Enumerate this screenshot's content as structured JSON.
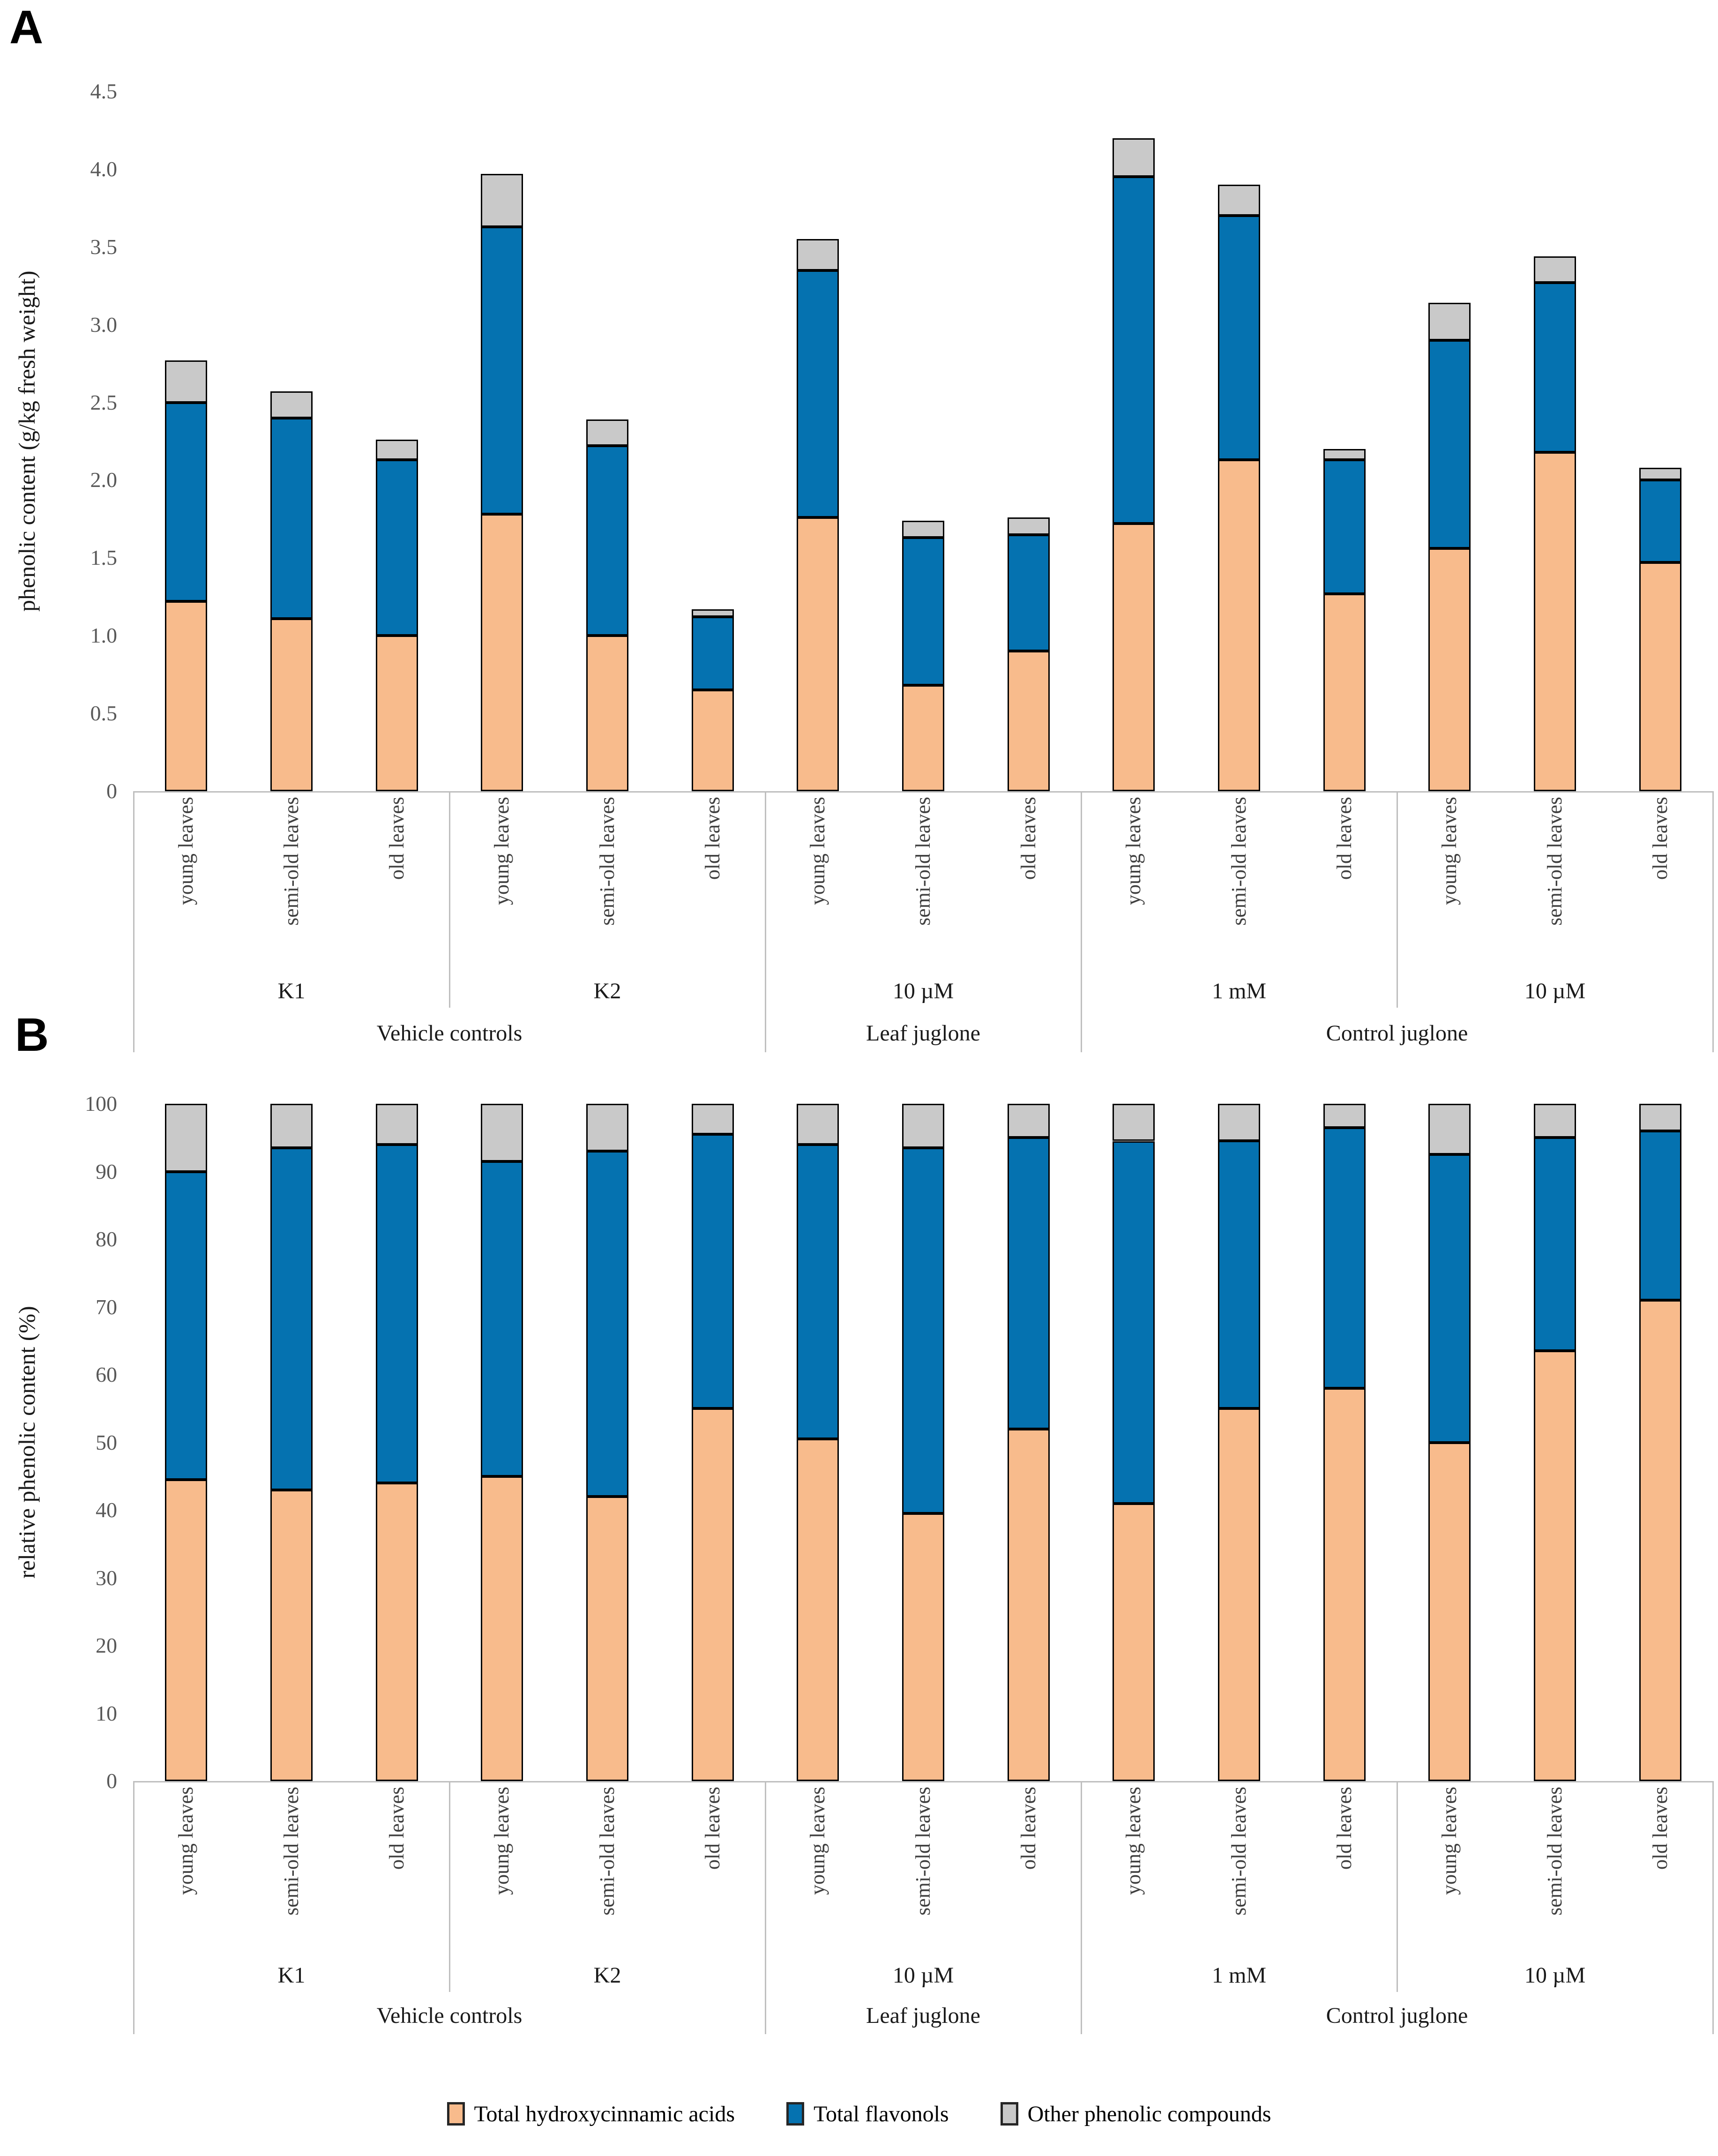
{
  "chart_data": [
    {
      "type": "bar",
      "stacked": true,
      "panel_label": "A",
      "ylabel": "phenolic content (g/kg fresh weight)",
      "ylim": [
        0,
        4.5
      ],
      "yticks": [
        "0",
        "0.5",
        "1.0",
        "1.5",
        "2.0",
        "2.5",
        "3.0",
        "3.5",
        "4.0",
        "4.5"
      ],
      "grid": false,
      "categories": [
        "young leaves",
        "semi-old leaves",
        "old leaves",
        "young leaves",
        "semi-old leaves",
        "old leaves",
        "young leaves",
        "semi-old leaves",
        "old leaves",
        "young leaves",
        "semi-old leaves",
        "old leaves",
        "young leaves",
        "semi-old leaves",
        "old leaves"
      ],
      "groups": [
        {
          "label": "K1",
          "span": 3
        },
        {
          "label": "K2",
          "span": 3
        },
        {
          "label": "10 µM",
          "span": 3
        },
        {
          "label": "1 mM",
          "span": 3
        },
        {
          "label": "10 µM",
          "span": 3
        }
      ],
      "super_groups": [
        {
          "label": "Vehicle controls",
          "group_start": 0,
          "group_count": 2
        },
        {
          "label": "Leaf juglone",
          "group_start": 2,
          "group_count": 1
        },
        {
          "label": "Control juglone",
          "group_start": 3,
          "group_count": 2
        }
      ],
      "series": [
        {
          "name": "Total hydroxycinnamic acids",
          "color": "#F8BB8C",
          "values": [
            1.22,
            1.11,
            1.0,
            1.78,
            1.0,
            0.65,
            1.76,
            0.68,
            0.9,
            1.72,
            2.13,
            1.27,
            1.56,
            2.18,
            1.47
          ]
        },
        {
          "name": "Total flavonols",
          "color": "#0572B0",
          "values": [
            1.28,
            1.29,
            1.13,
            1.85,
            1.22,
            0.47,
            1.59,
            0.95,
            0.75,
            2.23,
            1.57,
            0.86,
            1.34,
            1.09,
            0.53
          ]
        },
        {
          "name": "Other phenolic compounds",
          "color": "#C9C9C9",
          "values": [
            0.27,
            0.17,
            0.13,
            0.34,
            0.17,
            0.05,
            0.2,
            0.11,
            0.11,
            0.25,
            0.2,
            0.07,
            0.24,
            0.17,
            0.08
          ]
        }
      ]
    },
    {
      "type": "bar",
      "stacked": true,
      "panel_label": "B",
      "ylabel": "relative phenolic content (%)",
      "ylim": [
        0,
        100
      ],
      "yticks": [
        "0",
        "10",
        "20",
        "30",
        "40",
        "50",
        "60",
        "70",
        "80",
        "90",
        "100"
      ],
      "grid": false,
      "categories": [
        "young leaves",
        "semi-old leaves",
        "old leaves",
        "young leaves",
        "semi-old leaves",
        "old leaves",
        "young leaves",
        "semi-old leaves",
        "old leaves",
        "young leaves",
        "semi-old leaves",
        "old leaves",
        "young leaves",
        "semi-old leaves",
        "old leaves"
      ],
      "groups": [
        {
          "label": "K1",
          "span": 3
        },
        {
          "label": "K2",
          "span": 3
        },
        {
          "label": "10 µM",
          "span": 3
        },
        {
          "label": "1 mM",
          "span": 3
        },
        {
          "label": "10 µM",
          "span": 3
        }
      ],
      "super_groups": [
        {
          "label": "Vehicle controls",
          "group_start": 0,
          "group_count": 2
        },
        {
          "label": "Leaf juglone",
          "group_start": 2,
          "group_count": 1
        },
        {
          "label": "Control juglone",
          "group_start": 3,
          "group_count": 2
        }
      ],
      "series": [
        {
          "name": "Total hydroxycinnamic acids",
          "color": "#F8BB8C",
          "values": [
            44.5,
            43,
            44,
            45,
            42,
            55,
            50.5,
            39.5,
            52,
            41,
            55,
            58,
            50,
            63.5,
            71
          ]
        },
        {
          "name": "Total flavonols",
          "color": "#0572B0",
          "values": [
            45.5,
            50.5,
            50,
            46.5,
            51,
            40.5,
            43.5,
            54,
            43,
            53.5,
            39.5,
            38.5,
            42.5,
            31.5,
            25
          ]
        },
        {
          "name": "Other phenolic compounds",
          "color": "#C9C9C9",
          "values": [
            10,
            6.5,
            6,
            8.5,
            7,
            4.5,
            6,
            6.5,
            5,
            5.5,
            5.5,
            3.5,
            7.5,
            5,
            4
          ]
        }
      ]
    }
  ],
  "legend": {
    "position": "bottom",
    "entries": [
      "Total hydroxycinnamic acids",
      "Total flavonols",
      "Other phenolic compounds"
    ]
  }
}
